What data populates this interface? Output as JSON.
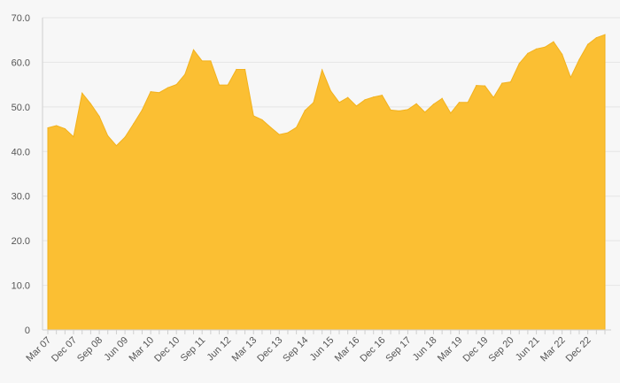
{
  "chart_data": {
    "type": "area",
    "title": "",
    "xlabel": "",
    "ylabel": "",
    "ylim": [
      0,
      70
    ],
    "grid": true,
    "legend": "none",
    "y_ticks": [
      "0",
      "10.0",
      "20.0",
      "30.0",
      "40.0",
      "50.0",
      "60.0",
      "70.0"
    ],
    "x_tick_labels": [
      "Mar 07",
      "Dec 07",
      "Sep 08",
      "Jun 09",
      "Mar 10",
      "Dec 10",
      "Sep 11",
      "Jun 12",
      "Mar 13",
      "Dec 13",
      "Sep 14",
      "Jun 15",
      "Mar 16",
      "Dec 16",
      "Sep 17",
      "Jun 18",
      "Mar 19",
      "Dec 19",
      "Sep 20",
      "Jun 21",
      "Mar 22",
      "Dec 22"
    ],
    "fill_color": "#fbbf33",
    "x": [
      "Mar 07",
      "Jun 07",
      "Sep 07",
      "Dec 07",
      "Mar 08",
      "Jun 08",
      "Sep 08",
      "Dec 08",
      "Mar 09",
      "Jun 09",
      "Sep 09",
      "Dec 09",
      "Mar 10",
      "Jun 10",
      "Sep 10",
      "Dec 10",
      "Mar 11",
      "Jun 11",
      "Sep 11",
      "Dec 11",
      "Mar 12",
      "Jun 12",
      "Sep 12",
      "Dec 12",
      "Mar 13",
      "Jun 13",
      "Sep 13",
      "Dec 13",
      "Mar 14",
      "Jun 14",
      "Sep 14",
      "Dec 14",
      "Mar 15",
      "Jun 15",
      "Sep 15",
      "Dec 15",
      "Mar 16",
      "Jun 16",
      "Sep 16",
      "Dec 16",
      "Mar 17",
      "Jun 17",
      "Sep 17",
      "Dec 17",
      "Mar 18",
      "Jun 18",
      "Sep 18",
      "Dec 18",
      "Mar 19",
      "Jun 19",
      "Sep 19",
      "Dec 19",
      "Mar 20",
      "Jun 20",
      "Sep 20",
      "Dec 20",
      "Mar 21",
      "Jun 21",
      "Sep 21",
      "Dec 21",
      "Mar 22",
      "Jun 22",
      "Sep 22",
      "Dec 22",
      "Mar 23",
      "Jun 23"
    ],
    "values": [
      45.3,
      45.8,
      45.1,
      43.3,
      53.1,
      50.7,
      47.9,
      43.5,
      41.3,
      43.2,
      46.2,
      49.3,
      53.4,
      53.2,
      54.3,
      55.0,
      57.3,
      62.8,
      60.3,
      60.3,
      54.9,
      54.9,
      58.4,
      58.4,
      48.0,
      47.1,
      45.4,
      43.8,
      44.2,
      45.4,
      49.2,
      51.0,
      58.3,
      53.6,
      51.0,
      52.1,
      50.2,
      51.6,
      52.2,
      52.6,
      49.3,
      49.1,
      49.4,
      50.7,
      48.8,
      50.6,
      51.9,
      48.6,
      51.0,
      51.0,
      54.8,
      54.7,
      52.1,
      55.3,
      55.6,
      59.7,
      62.0,
      63.0,
      63.4,
      64.6,
      61.8,
      56.6,
      60.6,
      64.0,
      65.5,
      66.2
    ]
  }
}
